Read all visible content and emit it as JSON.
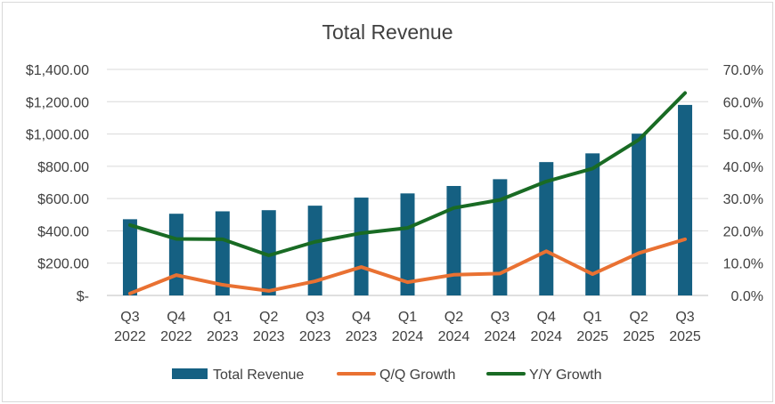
{
  "chart_data": {
    "type": "bar",
    "title": "Total Revenue",
    "categories": [
      [
        "Q3",
        "2022"
      ],
      [
        "Q4",
        "2022"
      ],
      [
        "Q1",
        "2023"
      ],
      [
        "Q2",
        "2023"
      ],
      [
        "Q3",
        "2023"
      ],
      [
        "Q4",
        "2023"
      ],
      [
        "Q1",
        "2024"
      ],
      [
        "Q2",
        "2024"
      ],
      [
        "Q3",
        "2024"
      ],
      [
        "Q4",
        "2024"
      ],
      [
        "Q1",
        "2025"
      ],
      [
        "Q2",
        "2025"
      ],
      [
        "Q3",
        "2025"
      ]
    ],
    "series": [
      {
        "name": "Total Revenue",
        "type": "bar",
        "axis": "left",
        "color": "#156082",
        "values": [
          472,
          506,
          521,
          528,
          556,
          606,
          632,
          678,
          720,
          826,
          880,
          1002,
          1180
        ]
      },
      {
        "name": "Q/Q Growth",
        "type": "line",
        "axis": "right",
        "color": "#E97132",
        "values": [
          0.6,
          6.3,
          3.3,
          1.4,
          4.4,
          8.8,
          4.1,
          6.4,
          6.8,
          13.7,
          6.6,
          13.1,
          17.4
        ]
      },
      {
        "name": "Y/Y Growth",
        "type": "line",
        "axis": "right",
        "color": "#196B24",
        "values": [
          21.8,
          17.5,
          17.4,
          12.4,
          16.6,
          19.3,
          20.9,
          27.1,
          29.6,
          35.3,
          39.3,
          48.2,
          62.7
        ]
      }
    ],
    "y_left": {
      "ylim": [
        0,
        1400
      ],
      "ticks": [
        0,
        200,
        400,
        600,
        800,
        1000,
        1200,
        1400
      ],
      "tick_labels": [
        "$-",
        "$200.00",
        "$400.00",
        "$600.00",
        "$800.00",
        "$1,000.00",
        "$1,200.00",
        "$1,400.00"
      ]
    },
    "y_right": {
      "ylim": [
        0,
        70
      ],
      "ticks": [
        0,
        10,
        20,
        30,
        40,
        50,
        60,
        70
      ],
      "tick_labels": [
        "0.0%",
        "10.0%",
        "20.0%",
        "30.0%",
        "40.0%",
        "50.0%",
        "60.0%",
        "70.0%"
      ]
    },
    "grid": true,
    "legend_position": "bottom"
  }
}
